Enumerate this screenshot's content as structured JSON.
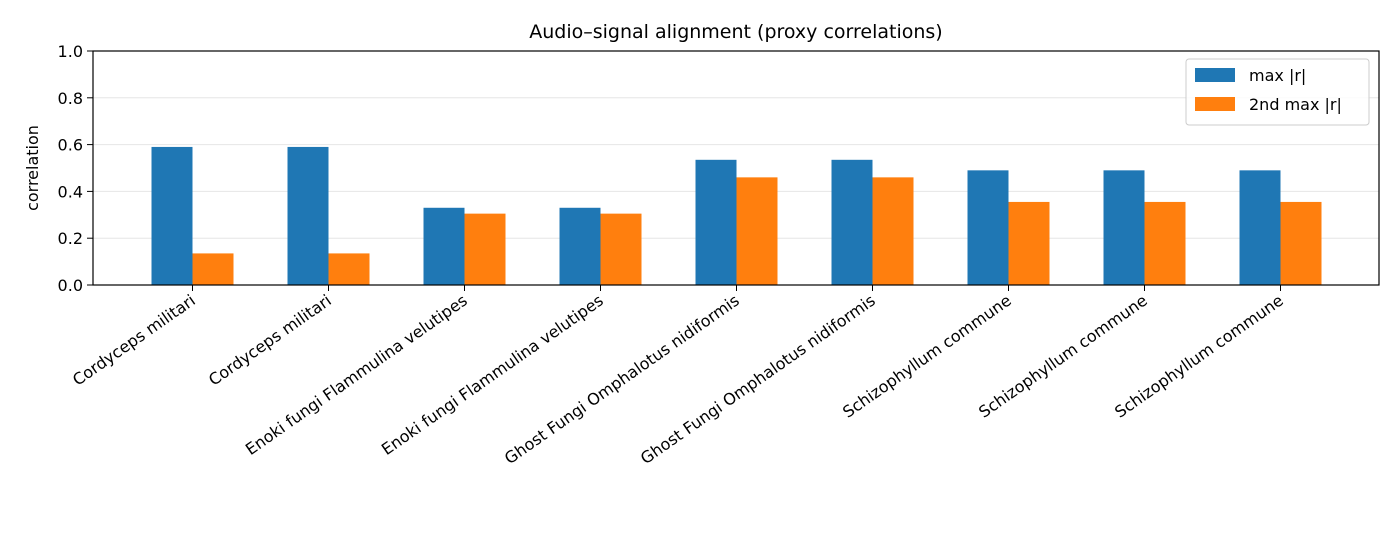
{
  "chart_data": {
    "type": "bar",
    "title": "Audio–signal alignment (proxy correlations)",
    "xlabel": "",
    "ylabel": "correlation",
    "ylim": [
      0,
      1.0
    ],
    "yticks": [
      "0.0",
      "0.2",
      "0.4",
      "0.6",
      "0.8",
      "1.0"
    ],
    "grid": "y",
    "legend_position": "top-right",
    "categories": [
      "Cordyceps militari",
      "Cordyceps militari",
      "Enoki fungi Flammulina velutipes",
      "Enoki fungi Flammulina velutipes",
      "Ghost Fungi Omphalotus nidiformis",
      "Ghost Fungi Omphalotus nidiformis",
      "Schizophyllum commune",
      "Schizophyllum commune",
      "Schizophyllum commune"
    ],
    "series": [
      {
        "name": "max |r|",
        "color": "#1f77b4",
        "values": [
          0.59,
          0.59,
          0.33,
          0.33,
          0.535,
          0.535,
          0.49,
          0.49,
          0.49
        ]
      },
      {
        "name": "2nd max |r|",
        "color": "#ff7f0e",
        "values": [
          0.135,
          0.135,
          0.305,
          0.305,
          0.46,
          0.46,
          0.355,
          0.355,
          0.355
        ]
      }
    ]
  }
}
